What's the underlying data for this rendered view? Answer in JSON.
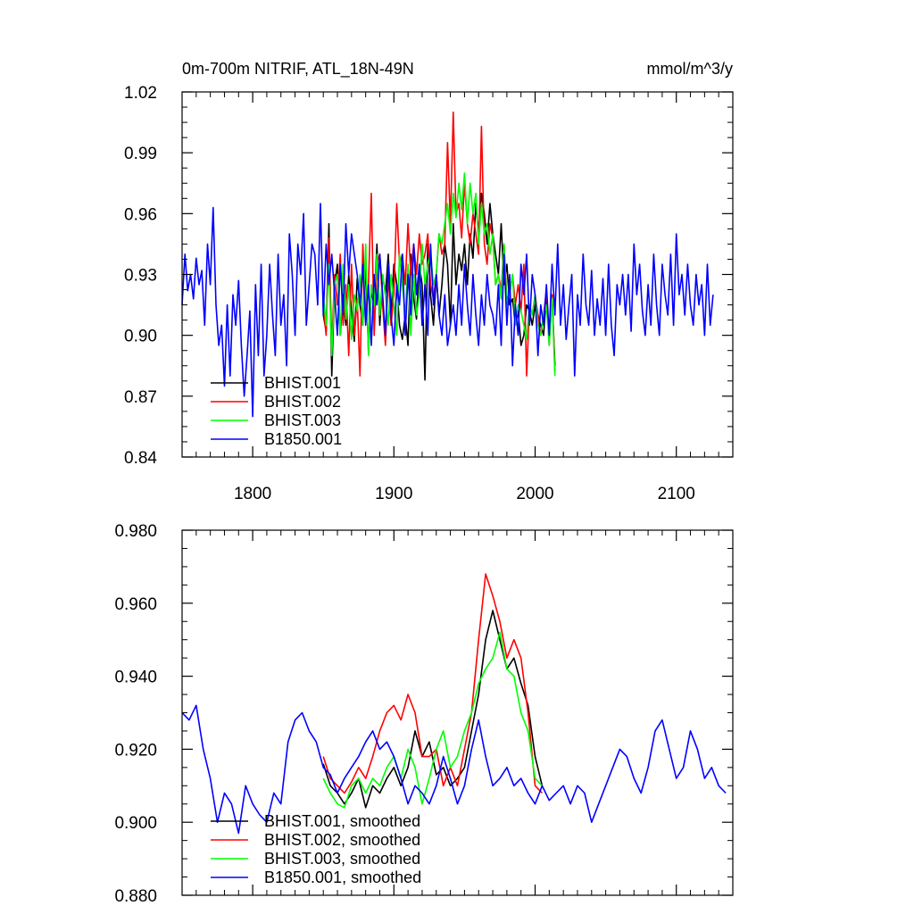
{
  "figure": {
    "title_left": "0m-700m NITRIF, ATL_18N-49N",
    "title_right": "mmol/m^3/y"
  },
  "chart_data": [
    {
      "type": "line",
      "xlim": [
        1750,
        2140
      ],
      "ylim": [
        0.84,
        1.02
      ],
      "xticks": [
        1800,
        1900,
        2000,
        2100
      ],
      "xtick_labels": [
        "1800",
        "1900",
        "2000",
        "2100"
      ],
      "yticks": [
        0.84,
        0.87,
        0.9,
        0.93,
        0.96,
        0.99,
        1.02
      ],
      "ytick_labels": [
        "0.84",
        "0.87",
        "0.90",
        "0.93",
        "0.96",
        "0.99",
        "1.02"
      ],
      "legend_position": "bottom-left",
      "grid": false,
      "series": [
        {
          "name": "BHIST.001",
          "color": "#000000",
          "x_start": 1850,
          "x_step": 2,
          "values": [
            0.91,
            0.902,
            0.955,
            0.88,
            0.925,
            0.935,
            0.9,
            0.92,
            0.905,
            0.93,
            0.912,
            0.897,
            0.928,
            0.915,
            0.905,
            0.935,
            0.892,
            0.922,
            0.915,
            0.945,
            0.905,
            0.93,
            0.92,
            0.94,
            0.91,
            0.935,
            0.925,
            0.905,
            0.898,
            0.91,
            0.895,
            0.94,
            0.918,
            0.908,
            0.935,
            0.925,
            0.878,
            0.945,
            0.92,
            0.905,
            0.93,
            0.91,
            0.925,
            0.945,
            0.935,
            0.905,
            0.955,
            0.925,
            0.94,
            0.932,
            0.945,
            0.925,
            0.95,
            0.938,
            0.965,
            0.95,
            0.97,
            0.96,
            0.945,
            0.965,
            0.95,
            0.94,
            0.93,
            0.955,
            0.925,
            0.935,
            0.915,
            0.918,
            0.905,
            0.912,
            0.895,
            0.9,
            0.915,
            0.912,
            0.905,
            0.915,
            0.91,
            0.905,
            0.9,
            0.92,
            0.9,
            0.92,
            0.885
          ]
        },
        {
          "name": "BHIST.002",
          "color": "#ff0000",
          "x_start": 1850,
          "x_step": 2,
          "values": [
            0.915,
            0.9,
            0.948,
            0.895,
            0.93,
            0.915,
            0.94,
            0.905,
            0.925,
            0.89,
            0.935,
            0.9,
            0.918,
            0.88,
            0.945,
            0.91,
            0.925,
            0.97,
            0.9,
            0.935,
            0.94,
            0.915,
            0.895,
            0.93,
            0.905,
            0.92,
            0.965,
            0.935,
            0.94,
            0.925,
            0.955,
            0.93,
            0.945,
            0.93,
            0.95,
            0.935,
            0.94,
            0.95,
            0.925,
            0.918,
            0.93,
            0.95,
            0.94,
            0.945,
            0.995,
            0.955,
            1.01,
            0.96,
            0.965,
            0.948,
            0.975,
            0.955,
            0.945,
            0.96,
            0.95,
            0.94,
            1.003,
            0.945,
            0.935,
            0.955,
            0.948,
            0.925,
            0.93,
            0.922,
            0.945,
            0.918,
            0.92,
            0.93,
            0.915,
            0.925,
            0.912,
            0.935,
            0.88,
            0.915,
            0.91,
            0.92,
            0.91,
            0.9,
            0.91,
            0.922,
            0.895,
            0.92,
            0.882
          ]
        },
        {
          "name": "BHIST.003",
          "color": "#00ff00",
          "x_start": 1850,
          "x_step": 2,
          "values": [
            0.92,
            0.905,
            0.935,
            0.89,
            0.925,
            0.93,
            0.9,
            0.935,
            0.908,
            0.925,
            0.898,
            0.92,
            0.912,
            0.93,
            0.905,
            0.945,
            0.89,
            0.925,
            0.915,
            0.94,
            0.91,
            0.93,
            0.92,
            0.905,
            0.93,
            0.915,
            0.9,
            0.94,
            0.925,
            0.91,
            0.935,
            0.9,
            0.93,
            0.91,
            0.92,
            0.945,
            0.925,
            0.935,
            0.94,
            0.925,
            0.93,
            0.95,
            0.945,
            0.955,
            0.965,
            0.95,
            0.97,
            0.958,
            0.975,
            0.962,
            0.98,
            0.955,
            0.975,
            0.96,
            0.97,
            0.945,
            0.965,
            0.95,
            0.955,
            0.94,
            0.95,
            0.925,
            0.93,
            0.918,
            0.945,
            0.915,
            0.92,
            0.93,
            0.905,
            0.915,
            0.912,
            0.905,
            0.898,
            0.915,
            0.91,
            0.92,
            0.905,
            0.9,
            0.91,
            0.915,
            0.895,
            0.918,
            0.88
          ]
        },
        {
          "name": "B1850.001",
          "color": "#0000ff",
          "x_start": 1750,
          "x_step": 2,
          "values": [
            0.915,
            0.94,
            0.922,
            0.93,
            0.918,
            0.938,
            0.925,
            0.932,
            0.905,
            0.945,
            0.925,
            0.963,
            0.915,
            0.895,
            0.905,
            0.875,
            0.915,
            0.88,
            0.92,
            0.905,
            0.927,
            0.895,
            0.87,
            0.89,
            0.912,
            0.86,
            0.925,
            0.89,
            0.935,
            0.88,
            0.9,
            0.935,
            0.91,
            0.89,
            0.94,
            0.905,
            0.92,
            0.885,
            0.95,
            0.93,
            0.9,
            0.945,
            0.93,
            0.96,
            0.905,
            0.925,
            0.945,
            0.94,
            0.915,
            0.965,
            0.91,
            0.945,
            0.925,
            0.94,
            0.92,
            0.9,
            0.935,
            0.91,
            0.955,
            0.93,
            0.95,
            0.94,
            0.93,
            0.915,
            0.935,
            0.905,
            0.925,
            0.895,
            0.93,
            0.915,
            0.94,
            0.92,
            0.9,
            0.935,
            0.91,
            0.895,
            0.925,
            0.915,
            0.94,
            0.9,
            0.93,
            0.91,
            0.945,
            0.92,
            0.935,
            0.905,
            0.925,
            0.9,
            0.945,
            0.915,
            0.93,
            0.91,
            0.9,
            0.92,
            0.895,
            0.905,
            0.915,
            0.9,
            0.925,
            0.905,
            0.935,
            0.915,
            0.9,
            0.93,
            0.91,
            0.895,
            0.92,
            0.905,
            0.93,
            0.915,
            0.91,
            0.9,
            0.925,
            0.895,
            0.94,
            0.905,
            0.93,
            0.885,
            0.915,
            0.9,
            0.935,
            0.92,
            0.94,
            0.905,
            0.93,
            0.92,
            0.89,
            0.915,
            0.905,
            0.925,
            0.9,
            0.935,
            0.91,
            0.945,
            0.905,
            0.925,
            0.898,
            0.915,
            0.93,
            0.88,
            0.92,
            0.905,
            0.94,
            0.915,
            0.905,
            0.932,
            0.9,
            0.918,
            0.905,
            0.928,
            0.9,
            0.935,
            0.905,
            0.89,
            0.925,
            0.915,
            0.93,
            0.91,
            0.93,
            0.902,
            0.945,
            0.92,
            0.935,
            0.912,
            0.9,
            0.925,
            0.905,
            0.94,
            0.915,
            0.9,
            0.935,
            0.92,
            0.91,
            0.94,
            0.905,
            0.95,
            0.92,
            0.93,
            0.91,
            0.935,
            0.915,
            0.905,
            0.93,
            0.915,
            0.925,
            0.9,
            0.935,
            0.905,
            0.92
          ]
        }
      ]
    },
    {
      "type": "line",
      "xlim": [
        1750,
        2140
      ],
      "ylim": [
        0.88,
        0.98
      ],
      "xticks": [
        1800,
        1900,
        2000,
        2100
      ],
      "yticks": [
        0.88,
        0.9,
        0.92,
        0.94,
        0.96,
        0.98
      ],
      "ytick_labels": [
        "0.880",
        "0.900",
        "0.920",
        "0.940",
        "0.960",
        "0.980"
      ],
      "legend_position": "bottom-left",
      "grid": false,
      "series": [
        {
          "name": "BHIST.001, smoothed",
          "color": "#000000",
          "x": [
            1850,
            1855,
            1860,
            1865,
            1870,
            1875,
            1880,
            1885,
            1890,
            1895,
            1900,
            1905,
            1910,
            1915,
            1920,
            1925,
            1930,
            1935,
            1940,
            1945,
            1950,
            1955,
            1960,
            1965,
            1970,
            1975,
            1980,
            1985,
            1990,
            1995,
            2000,
            2005
          ],
          "values": [
            0.916,
            0.91,
            0.908,
            0.905,
            0.908,
            0.912,
            0.904,
            0.91,
            0.908,
            0.912,
            0.915,
            0.91,
            0.915,
            0.925,
            0.918,
            0.922,
            0.913,
            0.915,
            0.91,
            0.912,
            0.915,
            0.925,
            0.935,
            0.95,
            0.958,
            0.95,
            0.942,
            0.945,
            0.938,
            0.932,
            0.918,
            0.91
          ]
        },
        {
          "name": "BHIST.002, smoothed",
          "color": "#ff0000",
          "x": [
            1850,
            1855,
            1860,
            1865,
            1870,
            1875,
            1880,
            1885,
            1890,
            1895,
            1900,
            1905,
            1910,
            1915,
            1920,
            1925,
            1930,
            1935,
            1940,
            1945,
            1950,
            1955,
            1960,
            1965,
            1970,
            1975,
            1980,
            1985,
            1990,
            1995,
            2000,
            2005
          ],
          "values": [
            0.918,
            0.912,
            0.91,
            0.908,
            0.911,
            0.915,
            0.912,
            0.918,
            0.925,
            0.93,
            0.932,
            0.928,
            0.935,
            0.93,
            0.918,
            0.918,
            0.92,
            0.91,
            0.915,
            0.91,
            0.92,
            0.93,
            0.95,
            0.968,
            0.962,
            0.955,
            0.945,
            0.95,
            0.945,
            0.93,
            0.91,
            0.908
          ]
        },
        {
          "name": "BHIST.003, smoothed",
          "color": "#00ff00",
          "x": [
            1850,
            1855,
            1860,
            1865,
            1870,
            1875,
            1880,
            1885,
            1890,
            1895,
            1900,
            1905,
            1910,
            1915,
            1920,
            1925,
            1930,
            1935,
            1940,
            1945,
            1950,
            1955,
            1960,
            1965,
            1970,
            1975,
            1980,
            1985,
            1990,
            1995,
            2000,
            2005
          ],
          "values": [
            0.912,
            0.908,
            0.905,
            0.904,
            0.91,
            0.912,
            0.908,
            0.912,
            0.91,
            0.915,
            0.918,
            0.912,
            0.92,
            0.915,
            0.905,
            0.912,
            0.92,
            0.925,
            0.915,
            0.918,
            0.925,
            0.93,
            0.938,
            0.942,
            0.945,
            0.952,
            0.942,
            0.94,
            0.93,
            0.925,
            0.912,
            0.91
          ]
        },
        {
          "name": "B1850.001, smoothed",
          "color": "#0000ff",
          "x": [
            1750,
            1755,
            1760,
            1765,
            1770,
            1775,
            1780,
            1785,
            1790,
            1795,
            1800,
            1805,
            1810,
            1815,
            1820,
            1825,
            1830,
            1835,
            1840,
            1845,
            1850,
            1855,
            1860,
            1865,
            1870,
            1875,
            1880,
            1885,
            1890,
            1895,
            1900,
            1905,
            1910,
            1915,
            1920,
            1925,
            1930,
            1935,
            1940,
            1945,
            1950,
            1955,
            1960,
            1965,
            1970,
            1975,
            1980,
            1985,
            1990,
            1995,
            2000,
            2005,
            2010,
            2015,
            2020,
            2025,
            2030,
            2035,
            2040,
            2045,
            2050,
            2055,
            2060,
            2065,
            2070,
            2075,
            2080,
            2085,
            2090,
            2095,
            2100,
            2105,
            2110,
            2115,
            2120,
            2125,
            2130,
            2135
          ],
          "values": [
            0.93,
            0.928,
            0.932,
            0.92,
            0.912,
            0.9,
            0.908,
            0.905,
            0.897,
            0.91,
            0.905,
            0.902,
            0.9,
            0.908,
            0.905,
            0.922,
            0.928,
            0.93,
            0.925,
            0.922,
            0.915,
            0.913,
            0.908,
            0.912,
            0.915,
            0.918,
            0.922,
            0.925,
            0.92,
            0.922,
            0.918,
            0.912,
            0.905,
            0.91,
            0.908,
            0.905,
            0.91,
            0.918,
            0.912,
            0.905,
            0.91,
            0.92,
            0.928,
            0.918,
            0.91,
            0.912,
            0.915,
            0.91,
            0.912,
            0.908,
            0.905,
            0.91,
            0.906,
            0.908,
            0.91,
            0.905,
            0.91,
            0.908,
            0.9,
            0.905,
            0.91,
            0.915,
            0.92,
            0.918,
            0.912,
            0.908,
            0.915,
            0.925,
            0.928,
            0.92,
            0.912,
            0.915,
            0.925,
            0.92,
            0.912,
            0.915,
            0.91,
            0.908
          ]
        }
      ]
    }
  ]
}
